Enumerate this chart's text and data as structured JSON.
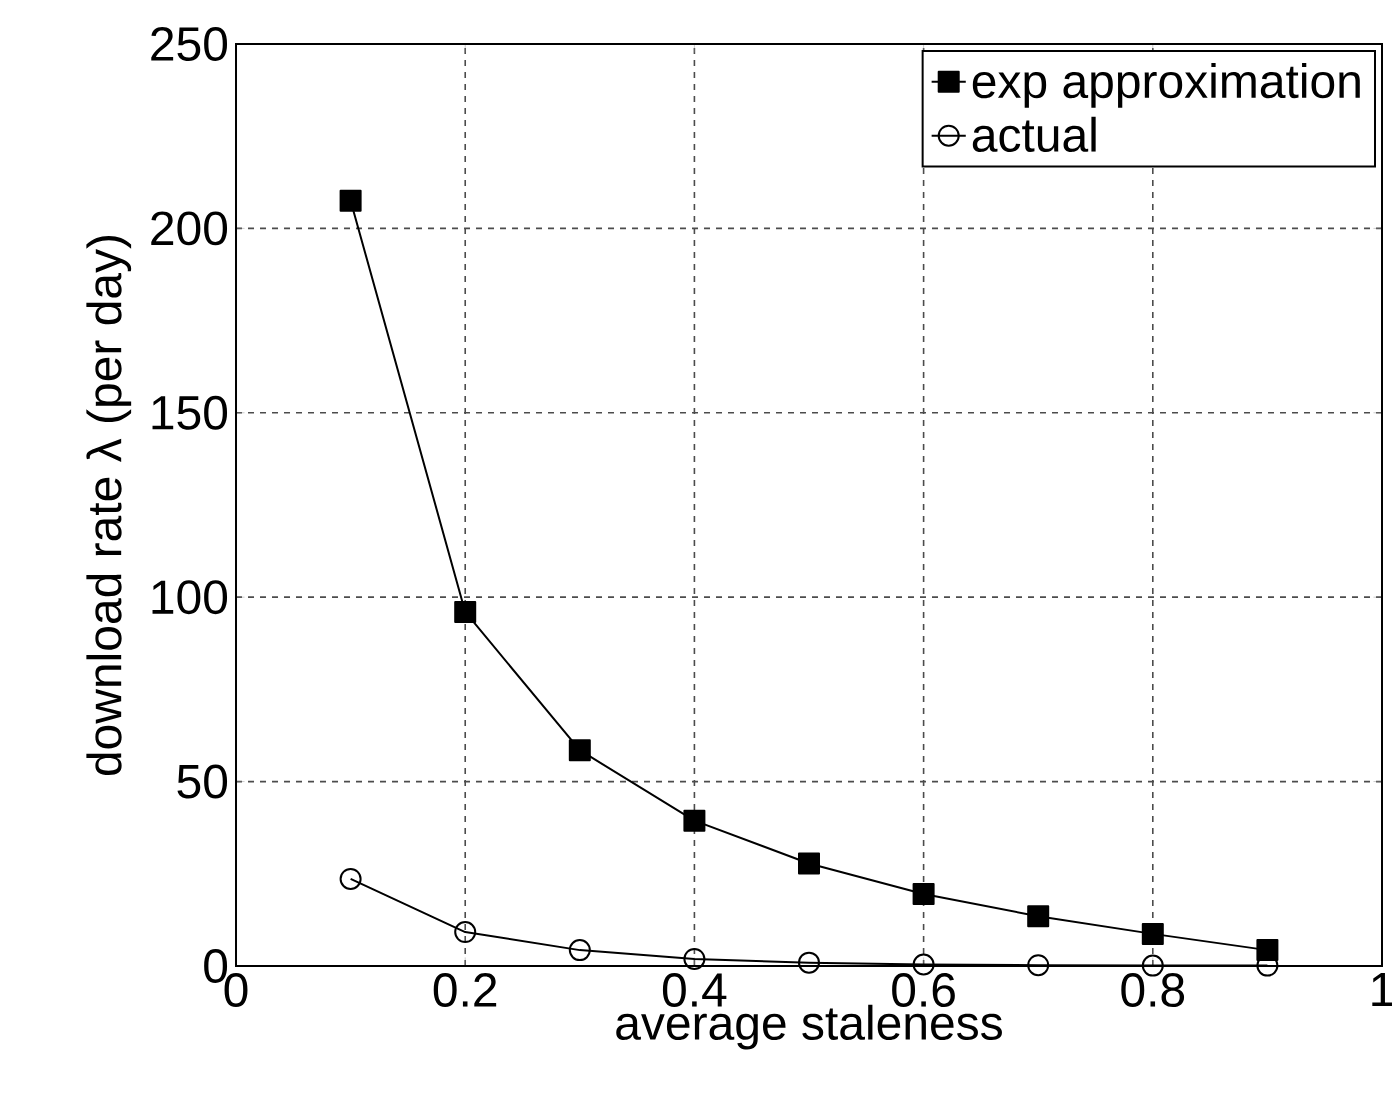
{
  "chart_data": {
    "type": "line",
    "xlabel": "average staleness",
    "ylabel": "download rate λ (per day)",
    "x": [
      0.1,
      0.2,
      0.3,
      0.4,
      0.5,
      0.6,
      0.7,
      0.8,
      0.9
    ],
    "series": [
      {
        "name": "exp approximation",
        "color": "#000000",
        "marker": "square",
        "values": [
          207.5,
          96,
          58.5,
          39.4,
          27.8,
          19.5,
          13.5,
          8.7,
          4.3
        ]
      },
      {
        "name": "actual",
        "color": "#000000",
        "marker": "circle",
        "values": [
          23.6,
          9.2,
          4.3,
          1.9,
          0.9,
          0.4,
          0.2,
          0.1,
          0.1
        ]
      }
    ],
    "xlim": [
      0,
      1
    ],
    "ylim": [
      0,
      250
    ],
    "xticks": [
      0,
      0.2,
      0.4,
      0.6,
      0.8,
      1
    ],
    "yticks": [
      0,
      50,
      100,
      150,
      200,
      250
    ],
    "grid": true,
    "legend": "top right",
    "line_style": "solid"
  }
}
